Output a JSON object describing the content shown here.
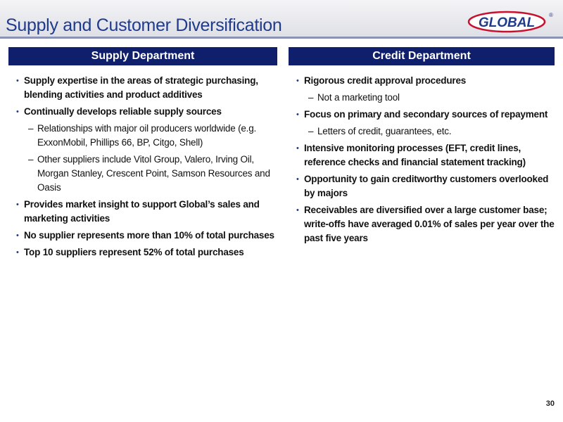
{
  "header": {
    "title": "Supply and Customer Diversification",
    "logo": "GLOBAL",
    "logo_mark": "®"
  },
  "columns": [
    {
      "heading": "Supply Department",
      "items": [
        {
          "level": 1,
          "text": "Supply expertise in the areas of strategic purchasing, blending activities and product additives"
        },
        {
          "level": 1,
          "text": "Continually develops reliable supply sources"
        },
        {
          "level": 2,
          "text": "Relationships with major oil producers worldwide (e.g. ExxonMobil, Phillips 66, BP, Citgo, Shell)"
        },
        {
          "level": 2,
          "text": "Other suppliers include Vitol Group, Valero, Irving Oil, Morgan Stanley, Crescent Point, Samson Resources and Oasis"
        },
        {
          "level": 1,
          "text": "Provides market insight to support Global’s sales and marketing activities"
        },
        {
          "level": 1,
          "text": "No supplier represents more than 10% of total purchases"
        },
        {
          "level": 1,
          "text": "Top 10 suppliers represent 52% of total purchases"
        }
      ]
    },
    {
      "heading": "Credit Department",
      "items": [
        {
          "level": 1,
          "text": "Rigorous credit approval procedures"
        },
        {
          "level": 2,
          "text": "Not a marketing tool"
        },
        {
          "level": 1,
          "text": "Focus on primary and secondary sources of repayment"
        },
        {
          "level": 2,
          "text": "Letters of credit, guarantees, etc."
        },
        {
          "level": 1,
          "text": "Intensive monitoring processes (EFT, credit lines, reference checks and financial statement tracking)"
        },
        {
          "level": 1,
          "text": "Opportunity to gain creditworthy customers overlooked by majors"
        },
        {
          "level": 1,
          "text": "Receivables are diversified over a large customer base; write-offs have averaged 0.01% of sales per year over the past five years"
        }
      ]
    }
  ],
  "footer": {
    "page": "30"
  }
}
